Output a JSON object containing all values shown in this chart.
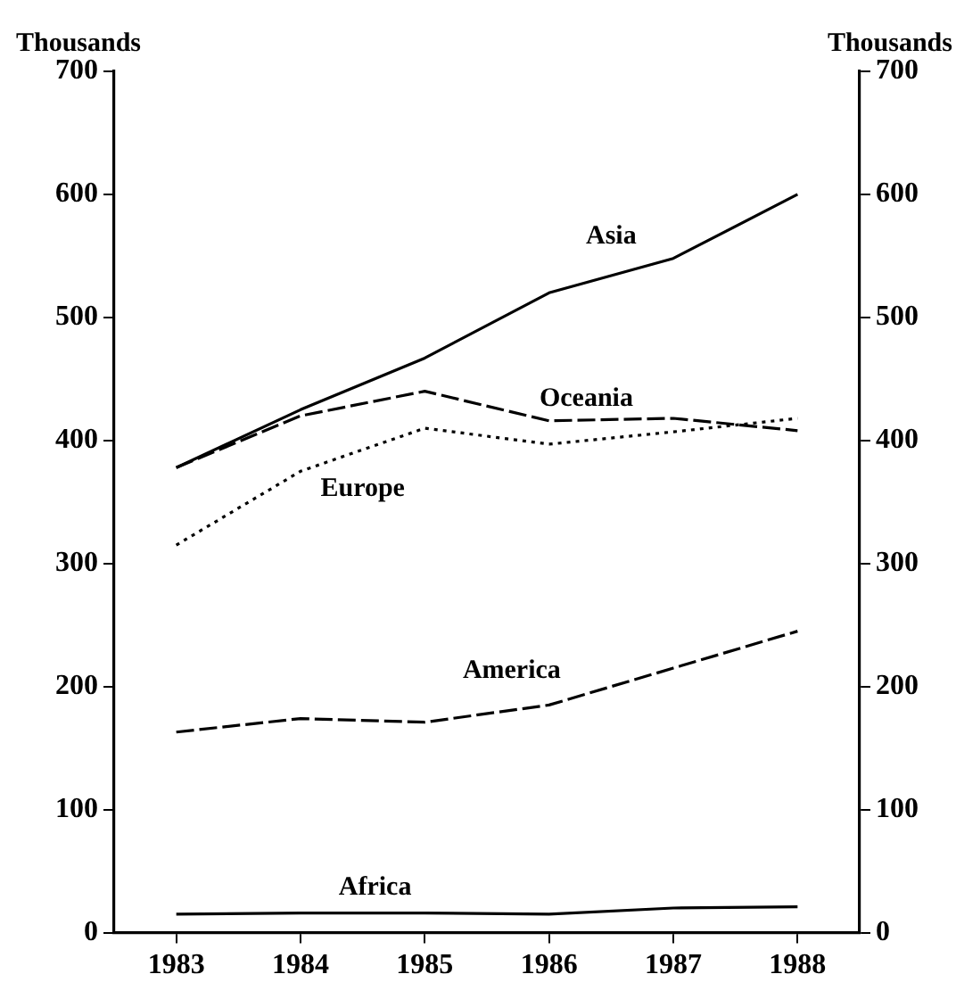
{
  "chart_data": {
    "type": "line",
    "ylabel": "Thousands",
    "y2label": "Thousands",
    "categories": [
      "1983",
      "1984",
      "1985",
      "1986",
      "1987",
      "1988"
    ],
    "series": [
      {
        "name": "Asia",
        "color": "#000000",
        "line_style": "solid",
        "values": [
          378,
          425,
          467,
          520,
          548,
          600
        ]
      },
      {
        "name": "Oceania",
        "color": "#000000",
        "line_style": "dashed",
        "values": [
          378,
          420,
          440,
          416,
          418,
          408
        ]
      },
      {
        "name": "Europe",
        "color": "#000000",
        "line_style": "dotted",
        "values": [
          315,
          375,
          410,
          397,
          407,
          418
        ]
      },
      {
        "name": "America",
        "color": "#000000",
        "line_style": "dashed",
        "values": [
          163,
          174,
          171,
          185,
          215,
          245
        ]
      },
      {
        "name": "Africa",
        "color": "#000000",
        "line_style": "solid",
        "values": [
          15,
          16,
          16,
          15,
          20,
          21
        ]
      }
    ],
    "ylim": [
      0,
      700
    ],
    "yticks": [
      0,
      100,
      200,
      300,
      400,
      500,
      600,
      700
    ],
    "y2lim": [
      0,
      700
    ],
    "y2ticks": [
      0,
      100,
      200,
      300,
      400,
      500,
      600,
      700
    ],
    "grid": false,
    "legend": false,
    "marker": "none"
  }
}
